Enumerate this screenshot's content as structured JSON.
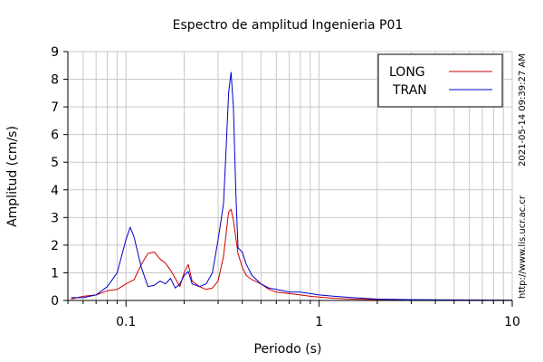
{
  "chart_data": {
    "type": "line",
    "title": "Espectro de amplitud Ingenieria P01",
    "xlabel": "Periodo (s)",
    "ylabel": "Amplitud (cm/s)",
    "x_scale": "log",
    "xlim": [
      0.05,
      10
    ],
    "ylim": [
      0,
      9
    ],
    "x_tick_labels": [
      "0.1",
      "1",
      "10"
    ],
    "y_tick_labels": [
      "0",
      "1",
      "2",
      "3",
      "4",
      "5",
      "6",
      "7",
      "8",
      "9"
    ],
    "grid": true,
    "legend_position": "top-right",
    "series": [
      {
        "name": "LONG",
        "color": "#cc0000",
        "x": [
          0.052,
          0.06,
          0.07,
          0.08,
          0.09,
          0.1,
          0.11,
          0.12,
          0.13,
          0.14,
          0.15,
          0.16,
          0.17,
          0.18,
          0.19,
          0.2,
          0.21,
          0.22,
          0.24,
          0.26,
          0.28,
          0.3,
          0.32,
          0.34,
          0.35,
          0.36,
          0.38,
          0.4,
          0.42,
          0.45,
          0.5,
          0.55,
          0.6,
          0.7,
          0.8,
          0.9,
          1.0,
          1.2,
          1.5,
          2.0,
          3.0,
          5.0,
          10.0
        ],
        "y": [
          0.05,
          0.15,
          0.2,
          0.35,
          0.4,
          0.6,
          0.75,
          1.3,
          1.7,
          1.75,
          1.5,
          1.35,
          1.1,
          0.8,
          0.5,
          1.0,
          1.3,
          0.7,
          0.5,
          0.4,
          0.45,
          0.7,
          1.6,
          3.2,
          3.3,
          2.9,
          1.7,
          1.2,
          0.9,
          0.75,
          0.6,
          0.4,
          0.3,
          0.25,
          0.2,
          0.15,
          0.12,
          0.08,
          0.05,
          0.03,
          0.02,
          0.01,
          0.01
        ]
      },
      {
        "name": "TRAN",
        "color": "#0000cc",
        "x": [
          0.052,
          0.06,
          0.07,
          0.08,
          0.09,
          0.1,
          0.105,
          0.11,
          0.12,
          0.13,
          0.14,
          0.15,
          0.16,
          0.17,
          0.18,
          0.19,
          0.2,
          0.21,
          0.22,
          0.24,
          0.26,
          0.28,
          0.3,
          0.32,
          0.33,
          0.34,
          0.35,
          0.36,
          0.37,
          0.38,
          0.4,
          0.42,
          0.45,
          0.5,
          0.55,
          0.6,
          0.7,
          0.8,
          0.9,
          1.0,
          1.2,
          1.5,
          2.0,
          3.0,
          5.0,
          10.0
        ],
        "y": [
          0.1,
          0.1,
          0.2,
          0.5,
          1.0,
          2.2,
          2.65,
          2.3,
          1.2,
          0.5,
          0.55,
          0.7,
          0.6,
          0.8,
          0.45,
          0.6,
          0.9,
          1.05,
          0.6,
          0.5,
          0.6,
          1.0,
          2.2,
          3.5,
          5.5,
          7.5,
          8.25,
          7.0,
          4.0,
          1.9,
          1.75,
          1.3,
          0.9,
          0.6,
          0.45,
          0.4,
          0.3,
          0.3,
          0.25,
          0.2,
          0.15,
          0.1,
          0.05,
          0.03,
          0.02,
          0.01
        ]
      }
    ]
  },
  "side_text_timestamp": "2021-05-14 09:39:27 AM",
  "side_text_url": "http://www.lis.ucr.ac.cr"
}
